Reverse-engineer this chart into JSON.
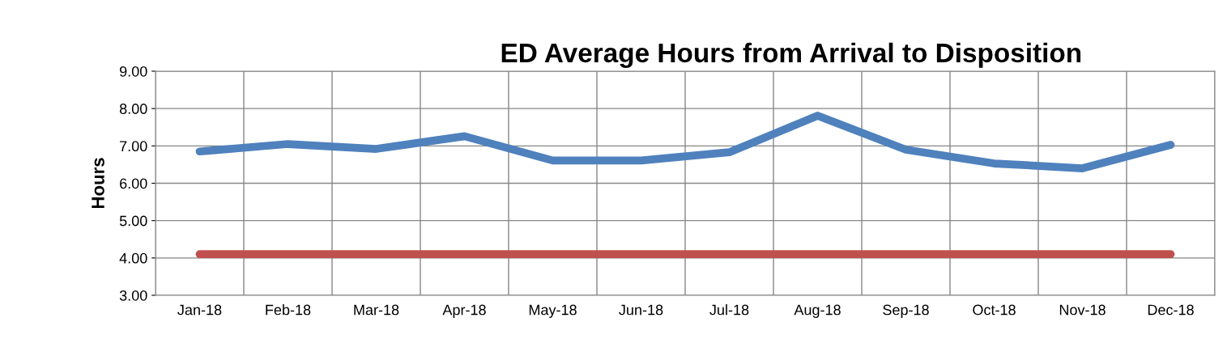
{
  "chart_data": {
    "type": "line",
    "title": "ED Average Hours from Arrival to Disposition",
    "ylabel": "Hours",
    "categories": [
      "Jan-18",
      "Feb-18",
      "Mar-18",
      "Apr-18",
      "May-18",
      "Jun-18",
      "Jul-18",
      "Aug-18",
      "Sep-18",
      "Oct-18",
      "Nov-18",
      "Dec-18"
    ],
    "series": [
      {
        "color": "#4f81bd",
        "values": [
          6.85,
          7.05,
          6.92,
          7.26,
          6.61,
          6.61,
          6.83,
          7.81,
          6.9,
          6.53,
          6.4,
          7.03
        ]
      },
      {
        "color": "#c0504d",
        "values": [
          4.1,
          4.1,
          4.1,
          4.1,
          4.1,
          4.1,
          4.1,
          4.1,
          4.1,
          4.1,
          4.1,
          4.1
        ]
      }
    ],
    "ylim": [
      3,
      9
    ],
    "yticks": [
      {
        "value": 3,
        "label": "3.00"
      },
      {
        "value": 4,
        "label": "4.00"
      },
      {
        "value": 5,
        "label": "5.00"
      },
      {
        "value": 6,
        "label": "6.00"
      },
      {
        "value": 7,
        "label": "7.00"
      },
      {
        "value": 8,
        "label": "8.00"
      },
      {
        "value": 9,
        "label": "9.00"
      }
    ],
    "grid": true,
    "marker": "none",
    "line_style": "solid"
  }
}
